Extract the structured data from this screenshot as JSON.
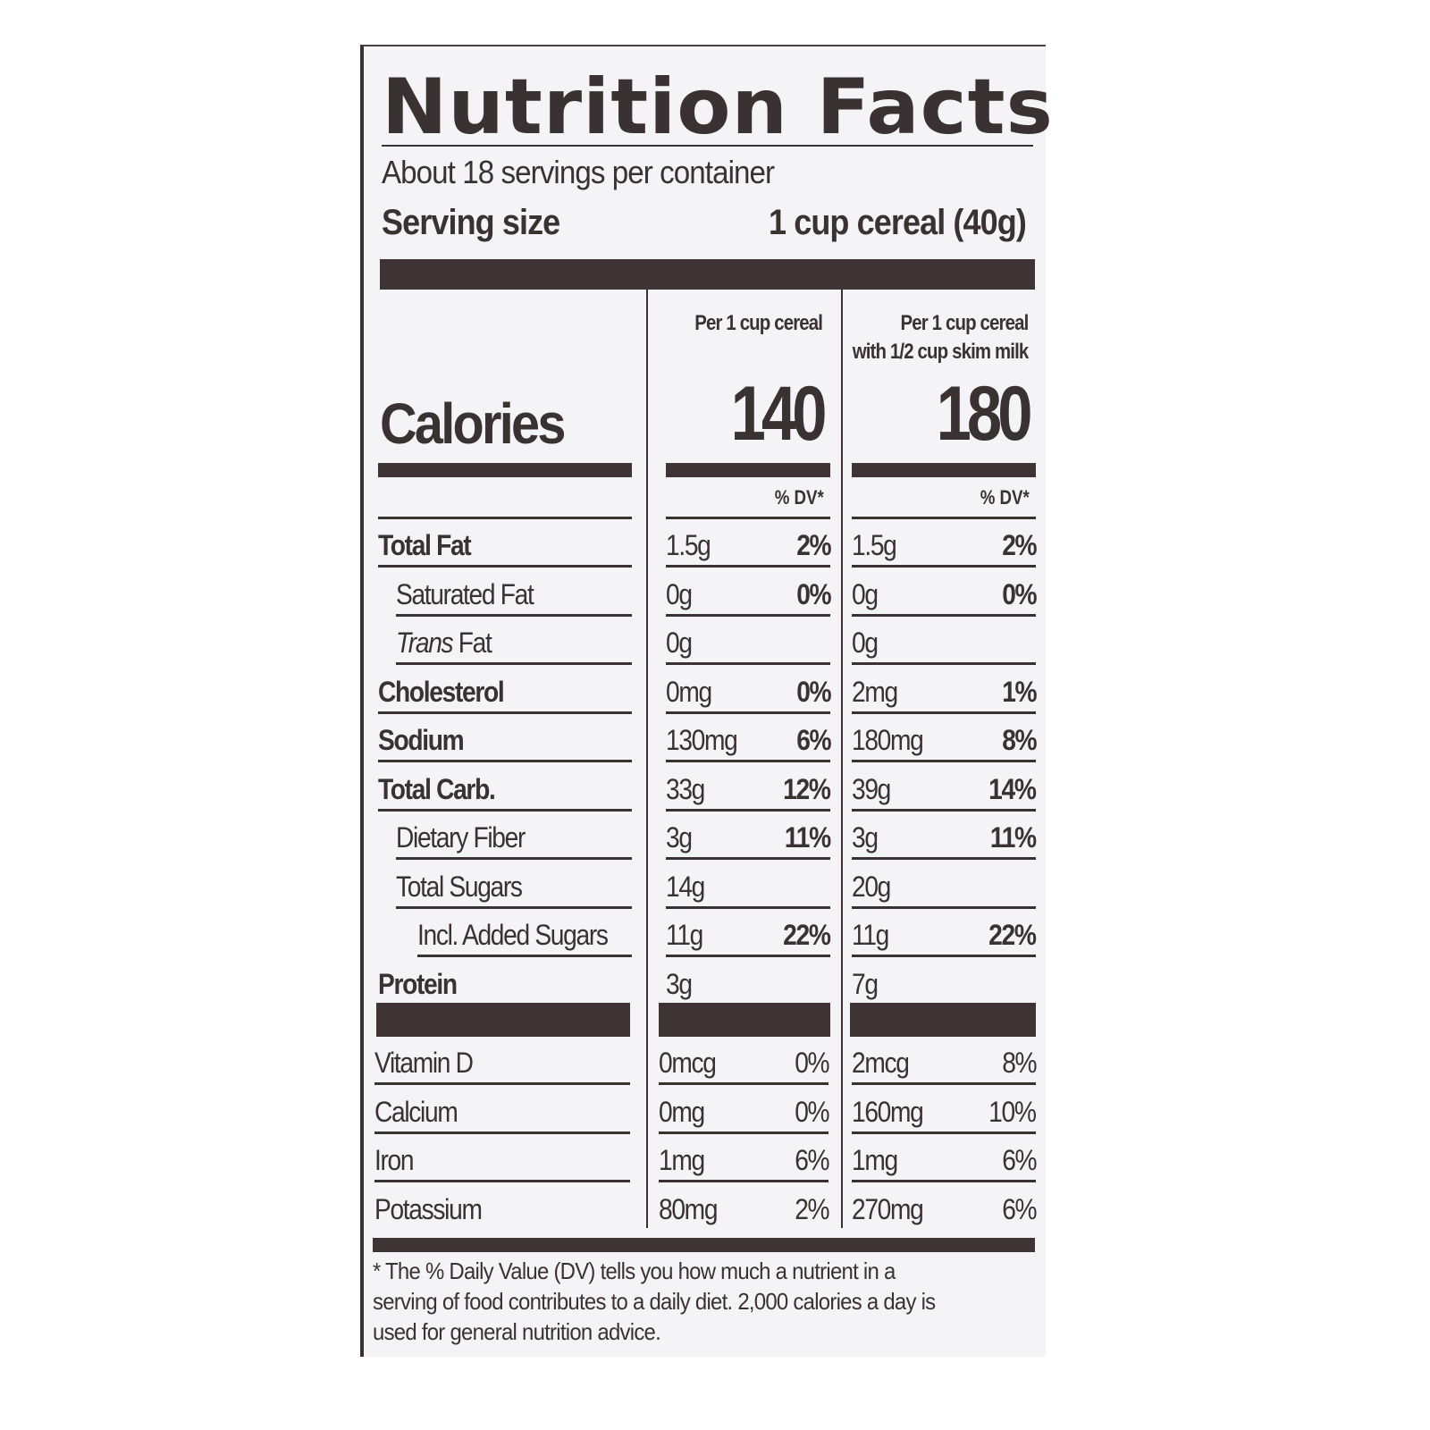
{
  "label": {
    "title": "Nutrition Facts",
    "servings_per_container": "About 18 servings per container",
    "serving_size_label": "Serving size",
    "serving_size_value": "1 cup cereal (40g)",
    "columns": [
      {
        "header_line1": "",
        "header_line2": "Per 1 cup cereal",
        "calories": "140",
        "dv_header": "% DV*"
      },
      {
        "header_line1": "Per 1 cup cereal",
        "header_line2": "with 1/2 cup skim milk",
        "calories": "180",
        "dv_header": "% DV*"
      }
    ],
    "calories_label": "Calories",
    "nutrients": [
      {
        "name": "Total Fat",
        "style": "bold",
        "indent": 0,
        "col1_amount": "1.5g",
        "col1_dv": "2%",
        "col2_amount": "1.5g",
        "col2_dv": "2%"
      },
      {
        "name": "Saturated Fat",
        "style": "normal",
        "indent": 1,
        "col1_amount": "0g",
        "col1_dv": "0%",
        "col2_amount": "0g",
        "col2_dv": "0%"
      },
      {
        "name_italic": "Trans",
        "name": " Fat",
        "style": "normal",
        "indent": 1,
        "col1_amount": "0g",
        "col1_dv": "",
        "col2_amount": "0g",
        "col2_dv": ""
      },
      {
        "name": "Cholesterol",
        "style": "bold",
        "indent": 0,
        "col1_amount": "0mg",
        "col1_dv": "0%",
        "col2_amount": "2mg",
        "col2_dv": "1%"
      },
      {
        "name": "Sodium",
        "style": "bold",
        "indent": 0,
        "col1_amount": "130mg",
        "col1_dv": "6%",
        "col2_amount": "180mg",
        "col2_dv": "8%"
      },
      {
        "name": "Total Carb.",
        "style": "bold",
        "indent": 0,
        "col1_amount": "33g",
        "col1_dv": "12%",
        "col2_amount": "39g",
        "col2_dv": "14%"
      },
      {
        "name": "Dietary Fiber",
        "style": "normal",
        "indent": 1,
        "col1_amount": "3g",
        "col1_dv": "11%",
        "col2_amount": "3g",
        "col2_dv": "11%"
      },
      {
        "name": "Total Sugars",
        "style": "normal",
        "indent": 1,
        "col1_amount": "14g",
        "col1_dv": "",
        "col2_amount": "20g",
        "col2_dv": ""
      },
      {
        "name": "Incl. Added Sugars",
        "style": "normal",
        "indent": 2,
        "col1_amount": "11g",
        "col1_dv": "22%",
        "col2_amount": "11g",
        "col2_dv": "22%"
      },
      {
        "name": "Protein",
        "style": "bold",
        "indent": 0,
        "col1_amount": "3g",
        "col1_dv": "",
        "col2_amount": "7g",
        "col2_dv": ""
      }
    ],
    "vitamins": [
      {
        "name": "Vitamin D",
        "col1_amount": "0mcg",
        "col1_dv": "0%",
        "col2_amount": "2mcg",
        "col2_dv": "8%"
      },
      {
        "name": "Calcium",
        "col1_amount": "0mg",
        "col1_dv": "0%",
        "col2_amount": "160mg",
        "col2_dv": "10%"
      },
      {
        "name": "Iron",
        "col1_amount": "1mg",
        "col1_dv": "6%",
        "col2_amount": "1mg",
        "col2_dv": "6%"
      },
      {
        "name": "Potassium",
        "col1_amount": "80mg",
        "col1_dv": "2%",
        "col2_amount": "270mg",
        "col2_dv": "6%"
      }
    ],
    "footnote": "* The % Daily Value (DV) tells you how much a nutrient in a serving of food contributes to a daily diet. 2,000 calories a day is used for general nutrition advice."
  }
}
